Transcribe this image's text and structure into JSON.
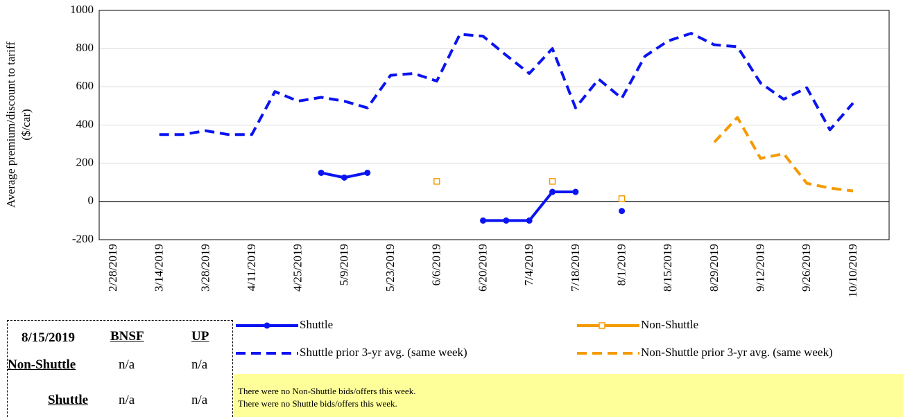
{
  "chart_data": {
    "type": "line",
    "y_label": [
      "Average  premium/discount to tariff",
      "($/car)"
    ],
    "categories": [
      "2/28/2019",
      null,
      "3/14/2019",
      null,
      "3/28/2019",
      null,
      "4/11/2019",
      null,
      "4/25/2019",
      null,
      "5/9/2019",
      null,
      "5/23/2019",
      null,
      "6/6/2019",
      null,
      "6/20/2019",
      null,
      "7/4/2019",
      null,
      "7/18/2019",
      null,
      "8/1/2019",
      null,
      "8/15/2019",
      null,
      "8/29/2019",
      null,
      "9/12/2019",
      null,
      "9/26/2019",
      null,
      "10/10/2019"
    ],
    "series": [
      {
        "name": "Shuttle",
        "color": "#0a14f0",
        "dash": false,
        "line": true,
        "marker": "circle",
        "values": [
          null,
          null,
          null,
          null,
          null,
          null,
          null,
          null,
          null,
          150,
          125,
          150,
          null,
          null,
          null,
          null,
          -100,
          -100,
          -100,
          50,
          50,
          null,
          -50,
          null,
          null,
          null,
          null,
          null,
          null,
          null,
          null,
          null,
          null
        ]
      },
      {
        "name": "Non-Shuttle",
        "color": "#f59a00",
        "dash": false,
        "line": false,
        "marker": "square",
        "values": [
          null,
          null,
          null,
          null,
          null,
          null,
          null,
          null,
          null,
          null,
          null,
          null,
          null,
          null,
          105,
          null,
          null,
          null,
          null,
          105,
          null,
          null,
          15,
          null,
          null,
          null,
          null,
          null,
          null,
          null,
          null,
          null,
          null
        ]
      },
      {
        "name": "Shuttle prior 3-yr avg. (same week)",
        "color": "#0a14f0",
        "dash": true,
        "line": true,
        "marker": null,
        "values": [
          null,
          null,
          350,
          350,
          370,
          350,
          350,
          575,
          525,
          545,
          525,
          490,
          660,
          670,
          630,
          875,
          865,
          765,
          670,
          800,
          490,
          640,
          540,
          760,
          840,
          880,
          820,
          810,
          620,
          535,
          595,
          375,
          515
        ]
      },
      {
        "name": "Non-Shuttle prior 3-yr avg. (same week)",
        "color": "#f59a00",
        "dash": true,
        "line": true,
        "marker": null,
        "values": [
          null,
          null,
          null,
          null,
          null,
          null,
          null,
          null,
          null,
          null,
          null,
          null,
          null,
          null,
          null,
          null,
          null,
          null,
          null,
          null,
          null,
          null,
          null,
          null,
          null,
          null,
          310,
          440,
          225,
          250,
          95,
          70,
          55
        ]
      }
    ],
    "ylim": [
      -200,
      1000
    ],
    "yticks": [
      -200,
      0,
      200,
      400,
      600,
      800,
      1000
    ],
    "grid": true
  },
  "table": {
    "header": [
      "8/15/2019",
      "BNSF",
      "UP"
    ],
    "rows": [
      [
        "Non-Shuttle",
        "n/a",
        "n/a"
      ],
      [
        "Shuttle",
        "n/a",
        "n/a"
      ]
    ]
  },
  "notes": [
    "There were no Non-Shuttle bids/offers  this week.",
    "There were no Shuttle bids/offers  this week."
  ]
}
